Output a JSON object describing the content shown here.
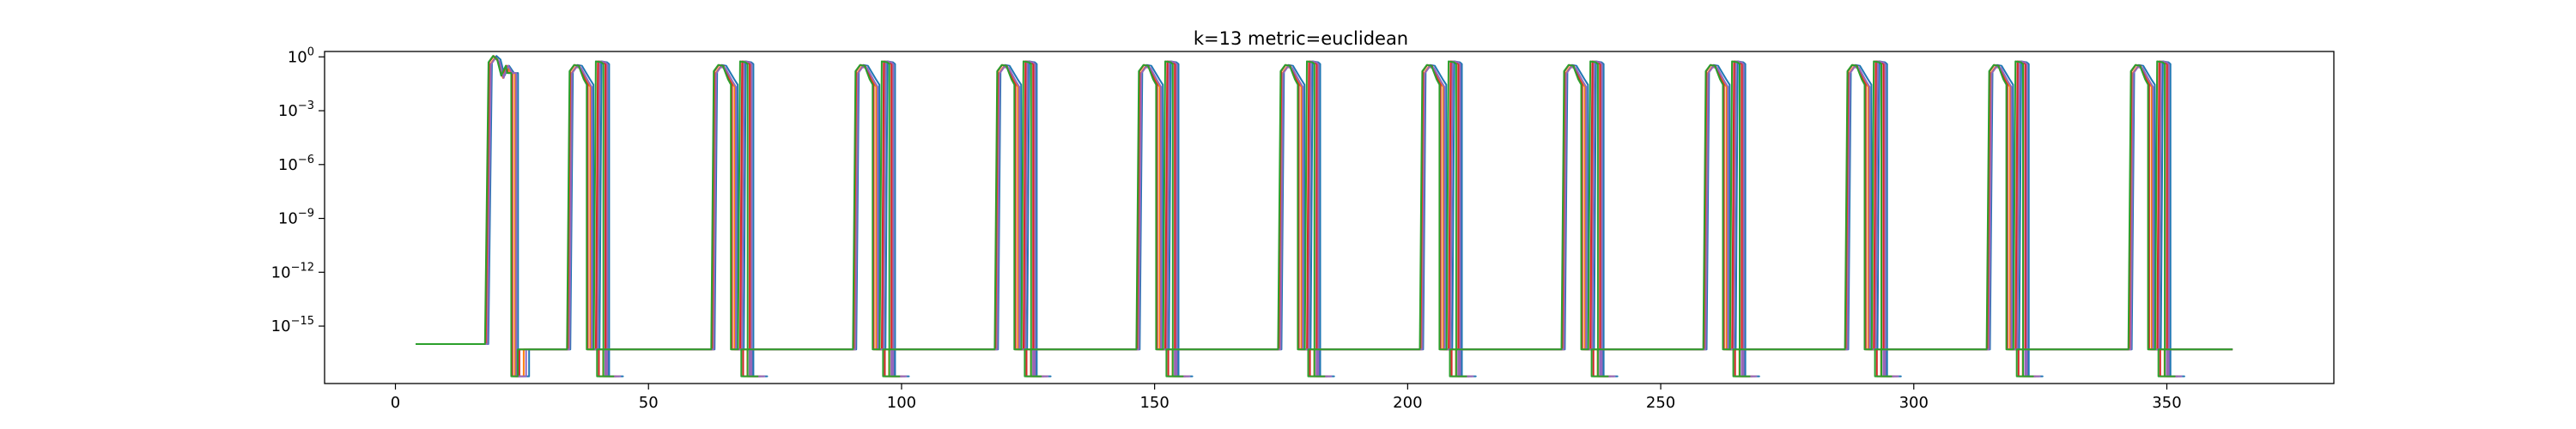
{
  "chart_data": {
    "type": "line",
    "title": "k=13 metric=euclidean",
    "xlabel": "",
    "ylabel": "",
    "xlim": [
      -14,
      383
    ],
    "ylim_log10": [
      -18.2,
      0.3
    ],
    "yscale": "log",
    "grid": false,
    "legend": "none",
    "x_ticks": [
      {
        "value": 0,
        "label": "0"
      },
      {
        "value": 50,
        "label": "50"
      },
      {
        "value": 100,
        "label": "100"
      },
      {
        "value": 150,
        "label": "150"
      },
      {
        "value": 200,
        "label": "200"
      },
      {
        "value": 250,
        "label": "250"
      },
      {
        "value": 300,
        "label": "300"
      },
      {
        "value": 350,
        "label": "350"
      }
    ],
    "y_ticks": [
      {
        "exp": 0,
        "base": "10",
        "sup": "0"
      },
      {
        "exp": -3,
        "base": "10",
        "sup": "−3"
      },
      {
        "exp": -6,
        "base": "10",
        "sup": "−6"
      },
      {
        "exp": -9,
        "base": "10",
        "sup": "−9"
      },
      {
        "exp": -12,
        "base": "10",
        "sup": "−12"
      },
      {
        "exp": -15,
        "base": "10",
        "sup": "−15"
      }
    ],
    "baseline_log10": -16.3,
    "floor_log10": -17.8,
    "series": [
      {
        "color": "#1f77b4",
        "shift": 1.6
      },
      {
        "color": "#ff7f0e",
        "shift": 0.7
      },
      {
        "color": "#d62728",
        "shift": 0.0
      },
      {
        "color": "#9467bd",
        "shift": 1.1
      },
      {
        "color": "#2ca02c",
        "shift": -0.3
      }
    ],
    "pulses": [
      {
        "rise": 17.8,
        "peak_log10": 0.05,
        "main_width": 4.5,
        "second": false
      },
      {
        "rise": 34.0,
        "peak_log10": -0.45,
        "main_width": 4.0,
        "second": true
      },
      {
        "rise": 62.5,
        "peak_log10": -0.45,
        "main_width": 4.0,
        "second": true
      },
      {
        "rise": 90.5,
        "peak_log10": -0.45,
        "main_width": 4.0,
        "second": true
      },
      {
        "rise": 118.5,
        "peak_log10": -0.45,
        "main_width": 4.0,
        "second": true
      },
      {
        "rise": 146.5,
        "peak_log10": -0.45,
        "main_width": 4.0,
        "second": true
      },
      {
        "rise": 174.5,
        "peak_log10": -0.45,
        "main_width": 4.0,
        "second": true
      },
      {
        "rise": 202.5,
        "peak_log10": -0.45,
        "main_width": 4.0,
        "second": true
      },
      {
        "rise": 230.5,
        "peak_log10": -0.45,
        "main_width": 4.0,
        "second": true
      },
      {
        "rise": 258.5,
        "peak_log10": -0.45,
        "main_width": 4.0,
        "second": true
      },
      {
        "rise": 286.5,
        "peak_log10": -0.45,
        "main_width": 4.0,
        "second": true
      },
      {
        "rise": 314.5,
        "peak_log10": -0.45,
        "main_width": 4.0,
        "second": true
      },
      {
        "rise": 342.5,
        "peak_log10": -0.45,
        "main_width": 4.0,
        "second": true
      }
    ],
    "initial_segment": {
      "x_start": 4,
      "x_end": 17.8,
      "value_log10": -16.0
    },
    "x_end": 363
  }
}
